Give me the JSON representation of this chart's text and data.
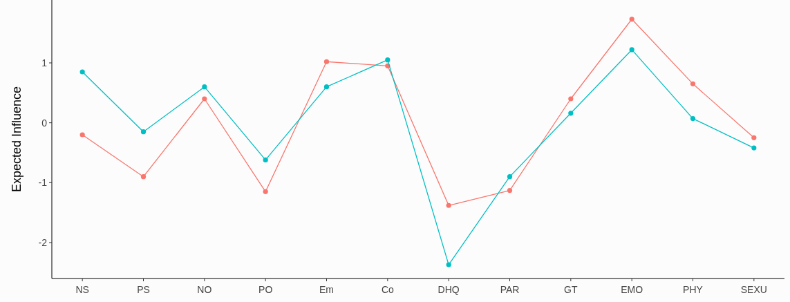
{
  "chart_data": {
    "type": "line",
    "ylabel": "Expected Influence",
    "categories": [
      "NS",
      "PS",
      "NO",
      "PO",
      "Em",
      "Co",
      "DHQ",
      "PAR",
      "GT",
      "EMO",
      "PHY",
      "SEXU"
    ],
    "ylim": [
      -2.6,
      2.05
    ],
    "yticks": [
      -2,
      -1,
      0,
      1
    ],
    "marker": "circle",
    "grid": false,
    "series": [
      {
        "color": "#f8766d",
        "values": [
          -0.2,
          -0.9,
          0.4,
          -1.15,
          1.02,
          0.95,
          -1.38,
          -1.13,
          0.4,
          1.73,
          0.65,
          -0.25
        ]
      },
      {
        "color": "#00bfc4",
        "values": [
          0.85,
          -0.15,
          0.6,
          -0.62,
          0.6,
          1.05,
          -2.37,
          -0.9,
          0.16,
          1.22,
          0.07,
          -0.42
        ]
      }
    ]
  }
}
